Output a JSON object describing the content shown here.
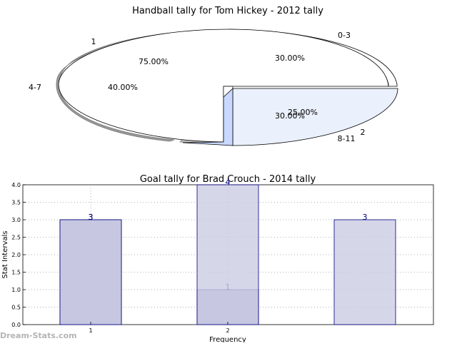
{
  "watermark": "Dream-Stats.com",
  "chart_data": [
    {
      "type": "pie",
      "title": "Handball tally for Tom Hickey - 2012 tally",
      "series": [
        {
          "name": "",
          "labels": [
            "0-3",
            "4-7",
            "8-11"
          ],
          "values": [
            30,
            40,
            30
          ],
          "percent_labels": [
            "30.00%",
            "40.00%",
            "30.00%"
          ],
          "colors": [
            "#ffffff",
            "#ffffff",
            "#eaf0fc"
          ]
        },
        {
          "name": "",
          "labels": [
            "1",
            "2"
          ],
          "values": [
            75,
            25
          ],
          "percent_labels": [
            "75.00%",
            "25.00%"
          ],
          "colors": [
            "#ffffff",
            "#c8d8ff"
          ]
        }
      ],
      "style": "3d-exploded"
    },
    {
      "type": "bar",
      "title": "Goal tally for Brad Crouch - 2014 tally",
      "xlabel": "Frequency",
      "ylabel": "Stat Intervals",
      "ylim": [
        0,
        4
      ],
      "yticks": [
        "0.0",
        "0.5",
        "1.0",
        "1.5",
        "2.0",
        "2.5",
        "3.0",
        "3.5",
        "4.0"
      ],
      "xticks": [
        "1",
        "2"
      ],
      "grid": true,
      "series": [
        {
          "name": "",
          "x": [
            1,
            2
          ],
          "values": [
            3,
            1
          ],
          "labels": [
            "3",
            "1"
          ],
          "color": "#a3a3cc"
        },
        {
          "name": "",
          "x": [
            1,
            2,
            3
          ],
          "values": [
            3,
            4,
            3
          ],
          "labels": [
            "3",
            "4",
            "3"
          ],
          "color": "#ccccE3"
        }
      ]
    }
  ]
}
